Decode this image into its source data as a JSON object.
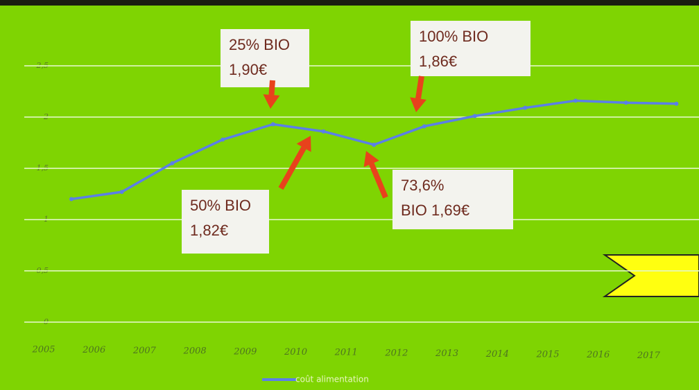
{
  "chart_data": {
    "type": "line",
    "categories": [
      "2005",
      "2006",
      "2007",
      "2008",
      "2009",
      "2010",
      "2011",
      "2012",
      "2013",
      "2014",
      "2015",
      "2016",
      "2017"
    ],
    "series": [
      {
        "name": "coût alimentation",
        "color": "#5b7fe8",
        "values": [
          1.2,
          1.27,
          1.55,
          1.78,
          1.93,
          1.86,
          1.73,
          1.91,
          2.01,
          2.09,
          2.16,
          2.14,
          2.13
        ]
      }
    ],
    "ylim": [
      0,
      2.5
    ],
    "yticks": [
      0,
      {
        "value": 0.5,
        "label": "0,5"
      },
      1,
      {
        "value": 1.5,
        "label": "1,5"
      },
      2,
      {
        "value": 2.5,
        "label": "2,5"
      }
    ],
    "grid": true,
    "annotations": [
      {
        "lines": [
          "25% BIO",
          "1,90€"
        ]
      },
      {
        "lines": [
          "100% BIO",
          "1,86€"
        ]
      },
      {
        "lines": [
          "50% BIO",
          "1,82€"
        ]
      },
      {
        "lines": [
          "73,6%",
          "BIO 1,69€"
        ]
      }
    ]
  }
}
